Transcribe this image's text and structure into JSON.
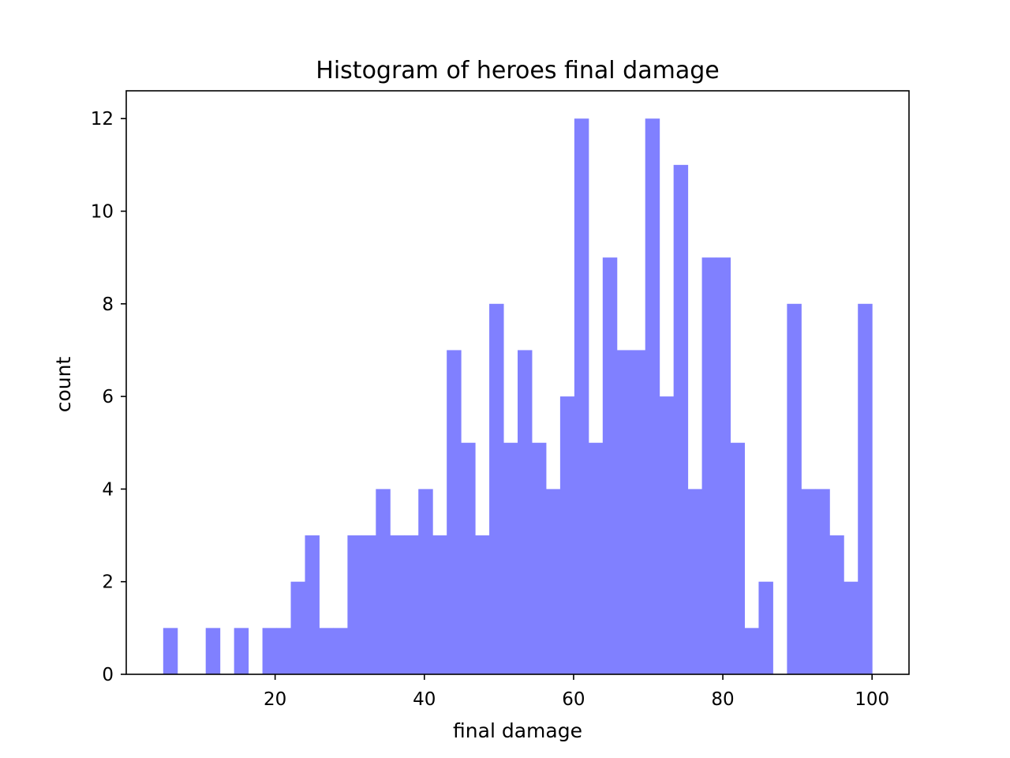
{
  "chart_data": {
    "type": "bar",
    "title": "Histogram of heroes final damage",
    "xlabel": "final damage",
    "ylabel": "count",
    "bar_color": "#8080ff",
    "xlim": [
      0.05,
      104.95
    ],
    "ylim": [
      0,
      12.6
    ],
    "x_ticks": [
      20,
      40,
      60,
      80,
      100
    ],
    "y_ticks": [
      0,
      2,
      4,
      6,
      8,
      10,
      12
    ],
    "bin_start": 5.0,
    "bin_width": 1.9,
    "values": [
      1,
      0,
      0,
      1,
      0,
      1,
      0,
      1,
      1,
      2,
      3,
      1,
      1,
      3,
      3,
      4,
      3,
      3,
      4,
      3,
      7,
      5,
      3,
      8,
      5,
      7,
      5,
      4,
      6,
      12,
      5,
      9,
      7,
      7,
      12,
      6,
      11,
      4,
      9,
      9,
      5,
      1,
      2,
      0,
      8,
      4,
      4,
      3,
      2,
      8
    ],
    "grid": false
  }
}
